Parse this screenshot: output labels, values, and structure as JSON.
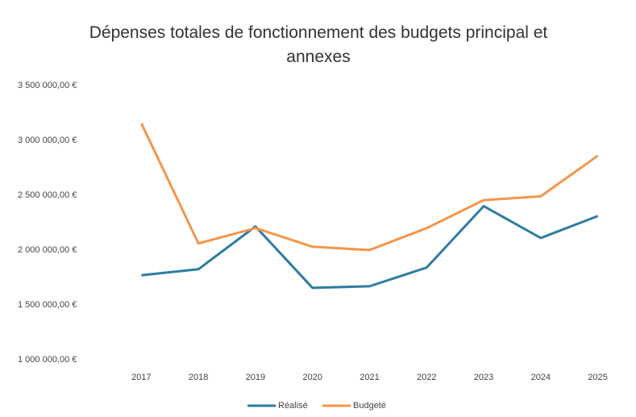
{
  "chart_data": {
    "type": "line",
    "title": "Dépenses totales de fonctionnement des budgets principal et annexes",
    "categories": [
      "2017",
      "2018",
      "2019",
      "2020",
      "2021",
      "2022",
      "2023",
      "2024",
      "2025"
    ],
    "series": [
      {
        "name": "Réalisé",
        "color": "#2e7ca0",
        "values": [
          1770000,
          1825000,
          2215000,
          1655000,
          1670000,
          1840000,
          2400000,
          2110000,
          2310000
        ]
      },
      {
        "name": "Budgeté",
        "color": "#f4954a",
        "values": [
          3155000,
          2060000,
          2200000,
          2030000,
          2000000,
          2200000,
          2455000,
          2490000,
          2860000
        ]
      }
    ],
    "ylim": [
      1000000,
      3500000
    ],
    "yticks": [
      {
        "value": 1000000,
        "label": "1 000 000,00 €"
      },
      {
        "value": 1500000,
        "label": "1 500 000,00 €"
      },
      {
        "value": 2000000,
        "label": "2 000 000,00 €"
      },
      {
        "value": 2500000,
        "label": "2 500 000,00 €"
      },
      {
        "value": 3000000,
        "label": "3 000 000,00 €"
      },
      {
        "value": 3500000,
        "label": "3 500 000,00 €"
      }
    ],
    "grid": true,
    "legend": "bottom"
  }
}
